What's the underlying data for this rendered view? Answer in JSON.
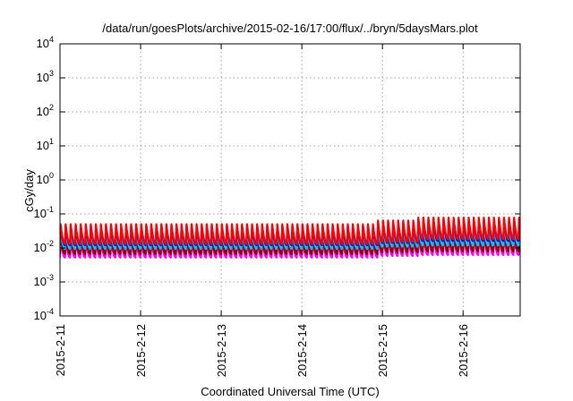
{
  "chart_data": {
    "type": "line",
    "title": "/data/run/goesPlots/archive/2015-02-16/17:00/flux/../bryn/5daysMars.plot",
    "xlabel": "Coordinated Universal Time (UTC)",
    "ylabel": "cGy/day",
    "x_scale": "time",
    "y_scale": "log",
    "xlim": [
      "2015-02-11T00:00",
      "2015-02-16T17:00"
    ],
    "ylim": [
      0.0001,
      10000
    ],
    "grid": true,
    "legend": "none",
    "x_ticks": [
      {
        "value": "2015-02-11T00:00",
        "label": "2015-2-11"
      },
      {
        "value": "2015-02-12T00:00",
        "label": "2015-2-12"
      },
      {
        "value": "2015-02-13T00:00",
        "label": "2015-2-13"
      },
      {
        "value": "2015-02-14T00:00",
        "label": "2015-2-14"
      },
      {
        "value": "2015-02-15T00:00",
        "label": "2015-2-15"
      },
      {
        "value": "2015-02-16T00:00",
        "label": "2015-2-16"
      }
    ],
    "y_ticks": [
      {
        "value": 0.0001,
        "base": "10",
        "exp": "-4"
      },
      {
        "value": 0.001,
        "base": "10",
        "exp": "-3"
      },
      {
        "value": 0.01,
        "base": "10",
        "exp": "-2"
      },
      {
        "value": 0.1,
        "base": "10",
        "exp": "-1"
      },
      {
        "value": 1,
        "base": "10",
        "exp": "0"
      },
      {
        "value": 10,
        "base": "10",
        "exp": "1"
      },
      {
        "value": 100,
        "base": "10",
        "exp": "2"
      },
      {
        "value": 1000,
        "base": "10",
        "exp": "3"
      },
      {
        "value": 10000,
        "base": "10",
        "exp": "4"
      }
    ],
    "cycle_minutes": 90,
    "series": [
      {
        "color": "#ff00ff",
        "segments": [
          {
            "start": "2015-02-11T00:00",
            "end": "2015-02-14T22:00",
            "peak": 0.019,
            "trough": 0.0052
          },
          {
            "start": "2015-02-14T22:00",
            "end": "2015-02-15T10:00",
            "peak": 0.024,
            "trough": 0.0058
          },
          {
            "start": "2015-02-15T10:00",
            "end": "2015-02-16T17:00",
            "peak": 0.027,
            "trough": 0.0062
          }
        ]
      },
      {
        "color": "#880000",
        "segments": [
          {
            "start": "2015-02-11T00:00",
            "end": "2015-02-14T22:00",
            "peak": 0.024,
            "trough": 0.0066
          },
          {
            "start": "2015-02-14T22:00",
            "end": "2015-02-15T10:00",
            "peak": 0.03,
            "trough": 0.0074
          },
          {
            "start": "2015-02-15T10:00",
            "end": "2015-02-16T17:00",
            "peak": 0.034,
            "trough": 0.0079
          }
        ]
      },
      {
        "color": "#00c8ff",
        "segments": [
          {
            "start": "2015-02-11T00:00",
            "end": "2015-02-14T22:00",
            "peak": 0.034,
            "trough": 0.0095
          },
          {
            "start": "2015-02-14T22:00",
            "end": "2015-02-15T10:00",
            "peak": 0.043,
            "trough": 0.011
          },
          {
            "start": "2015-02-15T10:00",
            "end": "2015-02-16T17:00",
            "peak": 0.05,
            "trough": 0.012
          }
        ]
      },
      {
        "color": "#0000ff",
        "segments": [
          {
            "start": "2015-02-11T00:00",
            "end": "2015-02-14T22:00",
            "peak": 0.045,
            "trough": 0.012
          },
          {
            "start": "2015-02-14T22:00",
            "end": "2015-02-15T10:00",
            "peak": 0.058,
            "trough": 0.014
          },
          {
            "start": "2015-02-15T10:00",
            "end": "2015-02-16T17:00",
            "peak": 0.07,
            "trough": 0.016
          }
        ]
      },
      {
        "color": "#ff0000",
        "segments": [
          {
            "start": "2015-02-11T00:00",
            "end": "2015-02-14T22:00",
            "peak": 0.05,
            "trough": 0.013
          },
          {
            "start": "2015-02-14T22:00",
            "end": "2015-02-15T10:00",
            "peak": 0.064,
            "trough": 0.015
          },
          {
            "start": "2015-02-15T10:00",
            "end": "2015-02-16T17:00",
            "peak": 0.078,
            "trough": 0.018
          }
        ]
      }
    ]
  }
}
